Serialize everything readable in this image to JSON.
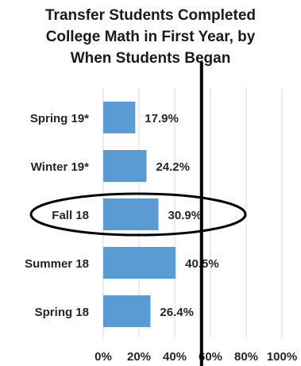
{
  "chart_data": {
    "type": "bar",
    "orientation": "horizontal",
    "title_lines": [
      "Transfer Students Completed",
      "College Math in First Year, by",
      "When Students Began"
    ],
    "categories": [
      "Spring 19*",
      "Winter 19*",
      "Fall 18",
      "Summer 18",
      "Spring 18"
    ],
    "values": [
      17.9,
      24.2,
      30.9,
      40.5,
      26.4
    ],
    "data_labels": [
      "17.9%",
      "24.2%",
      "30.9%",
      "40.5%",
      "26.4%"
    ],
    "xlim": [
      0,
      100
    ],
    "x_tick_labels": [
      "0%",
      "20%",
      "40%",
      "60%",
      "80%",
      "100%"
    ],
    "x_tick_values": [
      0,
      20,
      40,
      60,
      80,
      100
    ],
    "grid": true,
    "legend": "none",
    "bar_color": "#5b9bd5",
    "reference_line_value": 55,
    "reference_line_color": "#000000",
    "highlighted_category": "Fall 18",
    "highlight_shape": "ellipse"
  }
}
